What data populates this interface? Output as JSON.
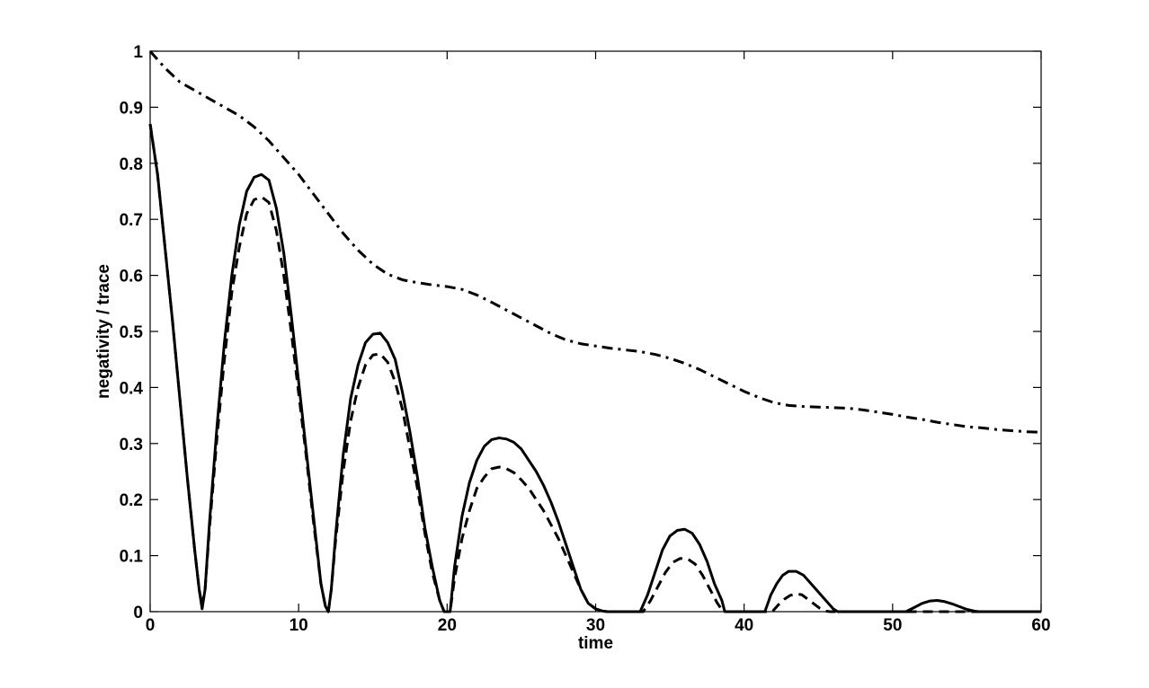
{
  "chart_data": {
    "type": "line",
    "title": "",
    "xlabel": "time",
    "ylabel": "negativity / trace",
    "xlim": [
      0,
      60
    ],
    "ylim": [
      0,
      1
    ],
    "xticks": [
      0,
      10,
      20,
      30,
      40,
      50,
      60
    ],
    "yticks": [
      0,
      0.1,
      0.2,
      0.3,
      0.4,
      0.5,
      0.6,
      0.7,
      0.8,
      0.9,
      1
    ],
    "grid": false,
    "legend": "none",
    "series": [
      {
        "style": "solid",
        "color": "#000000",
        "x": [
          0,
          0.5,
          1,
          1.5,
          2,
          2.5,
          3,
          3.3,
          3.5,
          3.7,
          4,
          4.5,
          5,
          5.5,
          6,
          6.5,
          7,
          7.5,
          8,
          8.5,
          9,
          9.5,
          10,
          10.5,
          11,
          11.5,
          11.8,
          12,
          12.2,
          12.5,
          13,
          13.5,
          14,
          14.5,
          15,
          15.5,
          16,
          16.5,
          17,
          17.5,
          18,
          18.5,
          19,
          19.5,
          19.8,
          20.2,
          20.5,
          21,
          21.5,
          22,
          22.5,
          23,
          23.5,
          24,
          24.5,
          25,
          25.5,
          26,
          26.5,
          27,
          27.5,
          28,
          28.5,
          29,
          29.5,
          30,
          30.5,
          30.8,
          33,
          33.5,
          34,
          34.5,
          35,
          35.5,
          36,
          36.5,
          37,
          37.5,
          38,
          38.5,
          38.7,
          41.4,
          41.8,
          42.2,
          42.6,
          43,
          43.5,
          44,
          44.5,
          45,
          45.5,
          46,
          46.3,
          50.9,
          51.5,
          52,
          52.5,
          53,
          53.5,
          54,
          54.5,
          55,
          55.5,
          55.8,
          60
        ],
        "values": [
          0.87,
          0.78,
          0.65,
          0.52,
          0.38,
          0.24,
          0.11,
          0.04,
          0.005,
          0.04,
          0.16,
          0.33,
          0.48,
          0.6,
          0.69,
          0.75,
          0.775,
          0.78,
          0.77,
          0.72,
          0.64,
          0.53,
          0.41,
          0.29,
          0.17,
          0.05,
          0.01,
          0,
          0.04,
          0.14,
          0.28,
          0.38,
          0.44,
          0.48,
          0.495,
          0.497,
          0.48,
          0.45,
          0.39,
          0.32,
          0.24,
          0.15,
          0.08,
          0.02,
          0,
          0,
          0.08,
          0.17,
          0.23,
          0.27,
          0.295,
          0.307,
          0.31,
          0.308,
          0.302,
          0.29,
          0.27,
          0.25,
          0.225,
          0.195,
          0.16,
          0.12,
          0.08,
          0.04,
          0.015,
          0.005,
          0.001,
          0,
          0,
          0.03,
          0.07,
          0.11,
          0.135,
          0.145,
          0.147,
          0.14,
          0.12,
          0.09,
          0.05,
          0.02,
          0,
          0,
          0.03,
          0.05,
          0.065,
          0.072,
          0.072,
          0.065,
          0.05,
          0.035,
          0.02,
          0.005,
          0,
          0,
          0.008,
          0.015,
          0.019,
          0.02,
          0.018,
          0.014,
          0.009,
          0.004,
          0.001,
          0,
          0
        ]
      },
      {
        "style": "dashed",
        "color": "#000000",
        "x": [
          0,
          0.5,
          1,
          1.5,
          2,
          2.5,
          3,
          3.3,
          3.5,
          3.7,
          4,
          4.5,
          5,
          5.5,
          6,
          6.5,
          7,
          7.5,
          8,
          8.5,
          9,
          9.5,
          10,
          10.5,
          11,
          11.5,
          11.8,
          12,
          12.2,
          12.5,
          13,
          13.5,
          14,
          14.5,
          15,
          15.5,
          16,
          16.5,
          17,
          17.5,
          18,
          18.5,
          19,
          19.5,
          19.8,
          20.2,
          20.5,
          21,
          21.5,
          22,
          22.5,
          23,
          23.5,
          24,
          24.5,
          25,
          25.5,
          26,
          26.5,
          27,
          27.5,
          28,
          28.5,
          29,
          29.5,
          30,
          30.5,
          30.8,
          33.2,
          33.7,
          34.2,
          34.7,
          35.2,
          35.7,
          36.2,
          36.7,
          37.2,
          37.7,
          38.2,
          38.6,
          41.9,
          42.3,
          42.7,
          43.1,
          43.5,
          43.9,
          44.3,
          44.7,
          45.1,
          45.5,
          45.8,
          60
        ],
        "values": [
          0.87,
          0.78,
          0.65,
          0.52,
          0.38,
          0.24,
          0.11,
          0.04,
          0.01,
          0.04,
          0.15,
          0.31,
          0.45,
          0.57,
          0.65,
          0.71,
          0.735,
          0.74,
          0.73,
          0.68,
          0.6,
          0.5,
          0.39,
          0.28,
          0.16,
          0.05,
          0.01,
          0,
          0.04,
          0.13,
          0.25,
          0.34,
          0.4,
          0.44,
          0.458,
          0.46,
          0.445,
          0.41,
          0.36,
          0.29,
          0.22,
          0.14,
          0.07,
          0.02,
          0,
          0,
          0.06,
          0.13,
          0.18,
          0.22,
          0.24,
          0.255,
          0.258,
          0.255,
          0.248,
          0.235,
          0.22,
          0.2,
          0.18,
          0.155,
          0.13,
          0.1,
          0.07,
          0.04,
          0.015,
          0.005,
          0.001,
          0,
          0,
          0.02,
          0.045,
          0.07,
          0.088,
          0.095,
          0.094,
          0.085,
          0.065,
          0.04,
          0.015,
          0,
          0,
          0.012,
          0.022,
          0.029,
          0.032,
          0.03,
          0.022,
          0.014,
          0.006,
          0.001,
          0,
          0
        ]
      },
      {
        "style": "dashdot",
        "color": "#000000",
        "x": [
          0,
          1,
          2,
          3,
          4,
          5,
          6,
          7,
          8,
          9,
          10,
          11,
          12,
          13,
          14,
          15,
          16,
          17,
          18,
          19,
          20,
          21,
          22,
          23,
          24,
          25,
          26,
          27,
          28,
          29,
          30,
          31,
          32,
          33,
          34,
          35,
          36,
          37,
          38,
          39,
          40,
          41,
          42,
          43,
          44,
          45,
          46,
          47,
          48,
          49,
          50,
          51,
          52,
          53,
          54,
          55,
          56,
          57,
          58,
          59,
          60
        ],
        "values": [
          1,
          0.97,
          0.945,
          0.93,
          0.915,
          0.9,
          0.885,
          0.865,
          0.84,
          0.81,
          0.78,
          0.745,
          0.71,
          0.675,
          0.645,
          0.62,
          0.602,
          0.592,
          0.587,
          0.583,
          0.58,
          0.575,
          0.565,
          0.552,
          0.538,
          0.524,
          0.51,
          0.496,
          0.485,
          0.478,
          0.474,
          0.47,
          0.467,
          0.464,
          0.459,
          0.452,
          0.443,
          0.432,
          0.419,
          0.406,
          0.393,
          0.382,
          0.373,
          0.368,
          0.366,
          0.365,
          0.364,
          0.363,
          0.36,
          0.356,
          0.352,
          0.347,
          0.343,
          0.338,
          0.334,
          0.33,
          0.328,
          0.325,
          0.323,
          0.321,
          0.32
        ]
      }
    ]
  }
}
